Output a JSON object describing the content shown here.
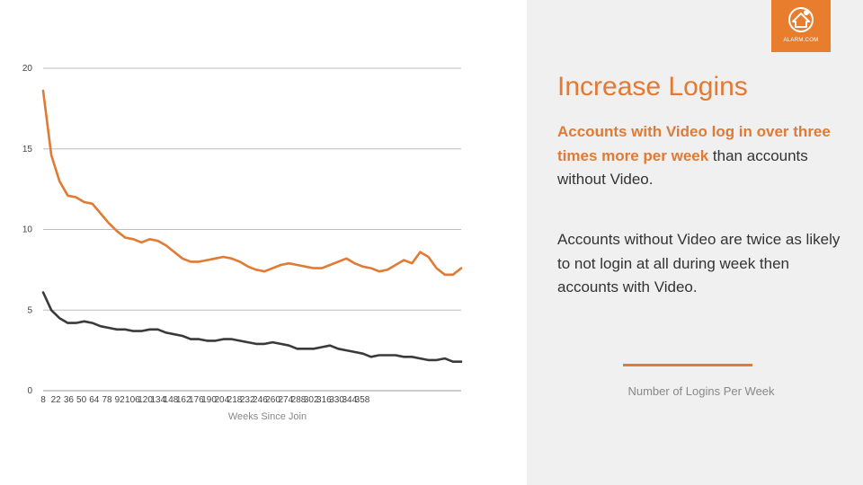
{
  "panel": {
    "title": "Increase Logins",
    "para1_bold": "Accounts with Video log in over three times more per week",
    "para1_rest": " than accounts without Video.",
    "para2": "Accounts without Video are twice as likely to not login at all during week then accounts with Video.",
    "legend_label": "Number of Logins Per Week",
    "logo_text": "ALARM.COM"
  },
  "colors": {
    "accent": "#e07a34",
    "dark_series": "#3a3a3a",
    "grid": "#bdbdbd"
  },
  "chart_data": {
    "type": "line",
    "xlabel": "Weeks Since Join",
    "ylabel": "",
    "ylim": [
      0,
      20
    ],
    "yticks": [
      0,
      5,
      10,
      15,
      20
    ],
    "grid": true,
    "x_tick_labels": [
      "8",
      "22",
      "36",
      "50",
      "64",
      "78",
      "92",
      "106",
      "120",
      "134",
      "148",
      "162",
      "176",
      "190",
      "204",
      "218",
      "232",
      "246",
      "260",
      "274",
      "288",
      "302",
      "316",
      "330",
      "344",
      "358"
    ],
    "x": [
      8,
      15,
      22,
      29,
      36,
      43,
      50,
      57,
      64,
      71,
      78,
      85,
      92,
      99,
      106,
      113,
      120,
      127,
      134,
      141,
      148,
      155,
      162,
      169,
      176,
      183,
      190,
      197,
      204,
      211,
      218,
      225,
      232,
      239,
      246,
      253,
      260,
      267,
      274,
      281,
      288,
      295,
      302,
      309,
      316,
      323,
      330,
      337,
      344,
      351,
      358,
      365
    ],
    "series": [
      {
        "color": "#e07a34",
        "values": [
          18.6,
          14.6,
          13.0,
          12.1,
          12.0,
          11.7,
          11.6,
          11.0,
          10.4,
          9.9,
          9.5,
          9.4,
          9.2,
          9.4,
          9.3,
          9.0,
          8.6,
          8.2,
          8.0,
          8.0,
          8.1,
          8.2,
          8.3,
          8.2,
          8.0,
          7.7,
          7.5,
          7.4,
          7.6,
          7.8,
          7.9,
          7.8,
          7.7,
          7.6,
          7.6,
          7.8,
          8.0,
          8.2,
          7.9,
          7.7,
          7.6,
          7.4,
          7.5,
          7.8,
          8.1,
          7.9,
          8.6,
          8.3,
          7.6,
          7.2,
          7.2,
          7.6
        ]
      },
      {
        "color": "#3a3a3a",
        "values": [
          6.1,
          5.0,
          4.5,
          4.2,
          4.2,
          4.3,
          4.2,
          4.0,
          3.9,
          3.8,
          3.8,
          3.7,
          3.7,
          3.8,
          3.8,
          3.6,
          3.5,
          3.4,
          3.2,
          3.2,
          3.1,
          3.1,
          3.2,
          3.2,
          3.1,
          3.0,
          2.9,
          2.9,
          3.0,
          2.9,
          2.8,
          2.6,
          2.6,
          2.6,
          2.7,
          2.8,
          2.6,
          2.5,
          2.4,
          2.3,
          2.1,
          2.2,
          2.2,
          2.2,
          2.1,
          2.1,
          2.0,
          1.9,
          1.9,
          2.0,
          1.8,
          1.8
        ]
      }
    ]
  }
}
